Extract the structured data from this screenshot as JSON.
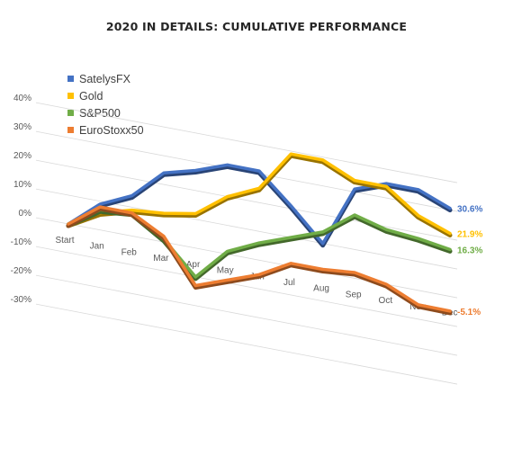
{
  "chart_data": {
    "type": "line",
    "title": "2020 IN DETAILS: CUMULATIVE PERFORMANCE",
    "categories": [
      "Start",
      "Jan",
      "Feb",
      "Mar",
      "Apr",
      "May",
      "Jun",
      "Jul",
      "Aug",
      "Sep",
      "Oct",
      "Nov",
      "Dec"
    ],
    "y_ticks": [
      "40%",
      "30%",
      "20%",
      "10%",
      "0%",
      "-10%",
      "-20%",
      "-30%"
    ],
    "ylim": [
      -30,
      40
    ],
    "grid": true,
    "legend_position": "top-left",
    "series": [
      {
        "name": "SatelysFX",
        "color": "#4472C4",
        "values": [
          0,
          9,
          14,
          24,
          27,
          31,
          31,
          21,
          10,
          31,
          35,
          35,
          30.6
        ],
        "end_label": "30.6%"
      },
      {
        "name": "Gold",
        "color": "#FFC000",
        "values": [
          0,
          6,
          9,
          10,
          12,
          20,
          25,
          39,
          39,
          34,
          34,
          26,
          21.9
        ],
        "end_label": "21.9%"
      },
      {
        "name": "S&P500",
        "color": "#70AD47",
        "values": [
          0,
          7,
          8,
          1,
          -10,
          1,
          6,
          10,
          14,
          22,
          19,
          18,
          16.3
        ],
        "end_label": "16.3%"
      },
      {
        "name": "EuroStoxx50",
        "color": "#ED7D31",
        "values": [
          0,
          8,
          8,
          2,
          -13,
          -9,
          -5,
          1,
          1,
          2,
          0,
          -5,
          -5.1
        ],
        "end_label": "-5.1%"
      }
    ]
  }
}
